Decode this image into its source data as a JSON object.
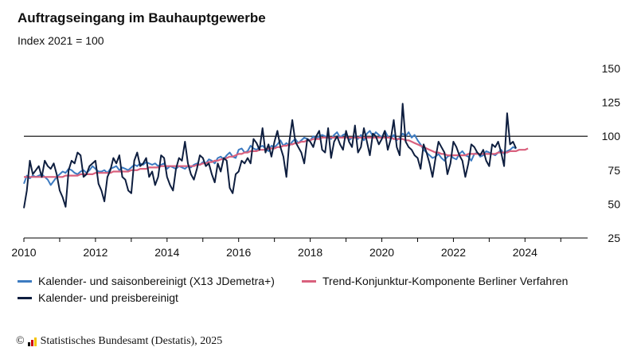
{
  "chart_data": {
    "type": "line",
    "title": "Auftragseingang im Bauhauptgewerbe",
    "subtitle": "Index 2021 = 100",
    "ylim": [
      25,
      150
    ],
    "yticks": [
      25,
      50,
      75,
      100,
      125,
      150
    ],
    "xlim": [
      2010,
      2025.75
    ],
    "xticks": [
      "2010",
      "2012",
      "2014",
      "2016",
      "2018",
      "2020",
      "2022",
      "2024"
    ],
    "reference_line": 100,
    "grid": false,
    "legend_position": "bottom",
    "series": [
      {
        "name": "Kalender- und saisonbereinigt (X13 JDemetra+)",
        "color": "#3d7bc1",
        "start": "2010-01",
        "values": [
          65,
          71,
          69,
          71,
          70,
          71,
          72,
          70,
          68,
          64,
          67,
          70,
          72,
          74,
          73,
          76,
          75,
          73,
          72,
          74,
          75,
          73,
          75,
          78,
          76,
          74,
          74,
          75,
          73,
          76,
          77,
          78,
          75,
          77,
          76,
          75,
          77,
          79,
          78,
          80,
          79,
          81,
          80,
          79,
          80,
          78,
          79,
          80,
          76,
          78,
          77,
          76,
          78,
          77,
          76,
          78,
          77,
          79,
          80,
          79,
          81,
          80,
          83,
          82,
          80,
          84,
          85,
          83,
          86,
          88,
          85,
          84,
          90,
          91,
          88,
          89,
          93,
          91,
          90,
          92,
          93,
          91,
          89,
          93,
          92,
          94,
          97,
          93,
          95,
          93,
          96,
          98,
          95,
          97,
          99,
          98,
          97,
          100,
          98,
          100,
          101,
          100,
          99,
          98,
          101,
          103,
          99,
          101,
          102,
          97,
          99,
          100,
          98,
          101,
          97,
          102,
          104,
          100,
          103,
          101,
          99,
          104,
          100,
          98,
          101,
          97,
          99,
          102,
          100,
          103,
          99,
          101,
          97,
          94,
          90,
          88,
          86,
          84,
          85,
          87,
          84,
          82,
          85,
          86,
          84,
          83,
          87,
          89,
          86,
          85,
          82,
          87,
          88,
          85,
          86,
          89,
          88,
          87,
          86,
          88,
          90,
          87,
          89,
          90,
          92,
          91
        ]
      },
      {
        "name": "Trend-Konjunktur-Komponente Berliner Verfahren",
        "color": "#d9607d",
        "start": "2010-01",
        "values": [
          70,
          70,
          70,
          70,
          70,
          70,
          70,
          70,
          70,
          70,
          70,
          70,
          70,
          70,
          71,
          71,
          71,
          71,
          71,
          72,
          72,
          72,
          72,
          72,
          73,
          73,
          73,
          73,
          73,
          73,
          74,
          74,
          74,
          74,
          74,
          74,
          75,
          75,
          75,
          76,
          76,
          76,
          77,
          77,
          77,
          77,
          78,
          78,
          78,
          78,
          78,
          78,
          78,
          78,
          78,
          78,
          78,
          78,
          79,
          79,
          80,
          80,
          81,
          81,
          82,
          82,
          83,
          83,
          84,
          85,
          85,
          86,
          87,
          87,
          88,
          88,
          89,
          89,
          89,
          90,
          90,
          90,
          91,
          91,
          91,
          92,
          92,
          93,
          93,
          94,
          94,
          95,
          95,
          96,
          96,
          97,
          97,
          98,
          98,
          98,
          99,
          99,
          99,
          99,
          99,
          99,
          99,
          99,
          99,
          99,
          99,
          99,
          99,
          99,
          99,
          99,
          99,
          99,
          99,
          99,
          99,
          99,
          99,
          99,
          98,
          98,
          98,
          98,
          97,
          97,
          96,
          95,
          94,
          93,
          92,
          91,
          90,
          89,
          88,
          88,
          87,
          87,
          86,
          86,
          86,
          86,
          86,
          86,
          86,
          87,
          87,
          87,
          87,
          87,
          87,
          87,
          87,
          87,
          87,
          88,
          88,
          88,
          88,
          89,
          89,
          89,
          90,
          90,
          90,
          91
        ]
      },
      {
        "name": "Kalender- und preisbereinigt",
        "color": "#0e1e3f",
        "start": "2010-01",
        "values": [
          47,
          60,
          82,
          72,
          75,
          78,
          70,
          82,
          78,
          76,
          80,
          72,
          60,
          55,
          48,
          75,
          82,
          80,
          88,
          86,
          70,
          72,
          78,
          80,
          82,
          65,
          60,
          52,
          70,
          75,
          84,
          80,
          86,
          70,
          68,
          60,
          58,
          82,
          88,
          78,
          80,
          84,
          70,
          74,
          64,
          70,
          86,
          84,
          70,
          64,
          60,
          76,
          84,
          82,
          96,
          80,
          72,
          68,
          76,
          86,
          84,
          78,
          80,
          72,
          66,
          80,
          74,
          84,
          82,
          62,
          58,
          72,
          74,
          82,
          80,
          84,
          80,
          98,
          95,
          90,
          106,
          88,
          94,
          85,
          96,
          104,
          92,
          85,
          70,
          96,
          112,
          96,
          92,
          88,
          80,
          98,
          96,
          92,
          100,
          104,
          90,
          88,
          106,
          84,
          96,
          100,
          94,
          90,
          104,
          96,
          92,
          108,
          88,
          92,
          106,
          96,
          86,
          102,
          100,
          94,
          98,
          104,
          90,
          98,
          112,
          92,
          86,
          124,
          96,
          92,
          90,
          86,
          84,
          76,
          94,
          88,
          80,
          70,
          84,
          96,
          92,
          88,
          72,
          80,
          96,
          92,
          86,
          82,
          70,
          80,
          94,
          92,
          88,
          86,
          90,
          82,
          78,
          94,
          92,
          96,
          88,
          78,
          117,
          94,
          96,
          91
        ]
      }
    ]
  },
  "legend": {
    "item1": "Kalender- und saisonbereinigt (X13 JDemetra+)",
    "item2": "Trend-Konjunktur-Komponente Berliner Verfahren",
    "item3": "Kalender- und preisbereinigt"
  },
  "source": {
    "copyright": "©",
    "text": "Statistisches Bundesamt (Destatis), 2025",
    "logo_colors": [
      "#000000",
      "#d00000",
      "#f5c400"
    ]
  }
}
